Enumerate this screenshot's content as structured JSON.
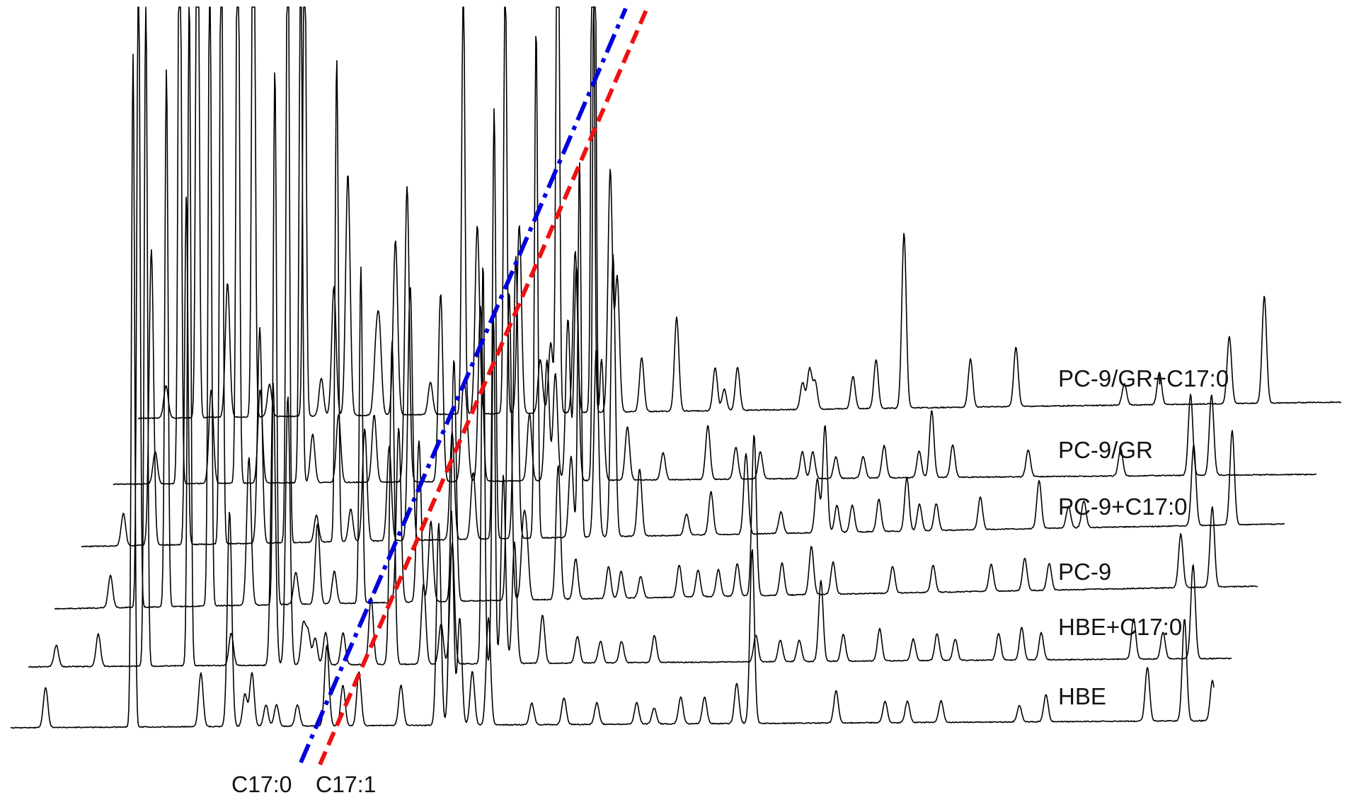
{
  "chart_data": {
    "type": "line",
    "title": "",
    "xlabel": "",
    "ylabel": "",
    "description_style": "stacked offset gas chromatograms",
    "series": [
      {
        "name": "PC-9/GR+C17:0",
        "peaks": [
          [
            0.04,
            0.12
          ],
          [
            0.085,
            2.5
          ],
          [
            0.128,
            0.5
          ],
          [
            0.165,
            2.5
          ],
          [
            0.188,
            0.12
          ],
          [
            0.238,
            2.0
          ],
          [
            0.262,
            0.14
          ],
          [
            0.28,
            0.48
          ],
          [
            0.3,
            0.9
          ],
          [
            0.34,
            0.22
          ],
          [
            0.345,
            0.3
          ],
          [
            0.368,
            0.65
          ],
          [
            0.418,
            0.12
          ],
          [
            0.465,
            1.65
          ],
          [
            0.485,
            0.7
          ],
          [
            0.525,
            1.65
          ],
          [
            0.545,
            0.7
          ],
          [
            0.575,
            0.2
          ],
          [
            0.59,
            0.26
          ],
          [
            0.6,
            2.5
          ],
          [
            0.625,
            0.6
          ],
          [
            0.65,
            2.5
          ],
          [
            0.675,
            0.9
          ],
          [
            0.685,
            0.5
          ],
          [
            0.72,
            0.2
          ],
          [
            0.77,
            0.35
          ],
          [
            0.825,
            0.16
          ],
          [
            0.838,
            0.08
          ],
          [
            0.857,
            0.16
          ],
          [
            0.95,
            0.1
          ],
          [
            0.96,
            0.15
          ],
          [
            0.968,
            0.1
          ],
          [
            1.022,
            0.12
          ],
          [
            1.055,
            0.18
          ],
          [
            1.095,
            0.65
          ],
          [
            1.19,
            0.18
          ],
          [
            1.255,
            0.22
          ],
          [
            1.41,
            0.08
          ],
          [
            1.46,
            0.12
          ],
          [
            1.56,
            0.25
          ],
          [
            1.61,
            0.4
          ]
        ]
      },
      {
        "name": "PC-9/GR",
        "peaks": [
          [
            0.06,
            0.12
          ],
          [
            0.095,
            2.5
          ],
          [
            0.14,
            0.35
          ],
          [
            0.178,
            2.5
          ],
          [
            0.21,
            0.35
          ],
          [
            0.268,
            2.0
          ],
          [
            0.285,
            0.18
          ],
          [
            0.322,
            0.25
          ],
          [
            0.373,
            0.25
          ],
          [
            0.42,
            1.1
          ],
          [
            0.468,
            0.7
          ],
          [
            0.5,
            0.3
          ],
          [
            0.505,
            0.2
          ],
          [
            0.525,
            0.65
          ],
          [
            0.595,
            0.25
          ],
          [
            0.62,
            0.45
          ],
          [
            0.632,
            0.4
          ],
          [
            0.65,
            0.6
          ],
          [
            0.662,
            0.8
          ],
          [
            0.688,
            2.5
          ],
          [
            0.698,
            0.45
          ],
          [
            0.735,
            0.2
          ],
          [
            0.786,
            0.1
          ],
          [
            0.85,
            0.2
          ],
          [
            0.89,
            0.12
          ],
          [
            0.925,
            0.1
          ],
          [
            0.985,
            0.1
          ],
          [
            1.0,
            0.1
          ],
          [
            1.033,
            0.08
          ],
          [
            1.072,
            0.08
          ],
          [
            1.102,
            0.12
          ],
          [
            1.152,
            0.1
          ],
          [
            1.17,
            0.25
          ],
          [
            1.2,
            0.12
          ],
          [
            1.308,
            0.1
          ],
          [
            1.44,
            0.1
          ],
          [
            1.54,
            0.3
          ],
          [
            1.57,
            0.3
          ]
        ]
      },
      {
        "name": "PC-9+C17:0",
        "peaks": [
          [
            0.06,
            0.12
          ],
          [
            0.1,
            1.1
          ],
          [
            0.15,
            1.3
          ],
          [
            0.2,
            2.5
          ],
          [
            0.255,
            0.8
          ],
          [
            0.295,
            2.5
          ],
          [
            0.336,
            0.1
          ],
          [
            0.365,
            1.8
          ],
          [
            0.385,
            0.12
          ],
          [
            0.405,
            0.42
          ],
          [
            0.44,
            0.35
          ],
          [
            0.47,
            0.95
          ],
          [
            0.53,
            0.4
          ],
          [
            0.56,
            0.25
          ],
          [
            0.59,
            1.6
          ],
          [
            0.621,
            1.05
          ],
          [
            0.65,
            1.9
          ],
          [
            0.7,
            0.3
          ],
          [
            0.712,
            1.4
          ],
          [
            0.736,
            0.7
          ],
          [
            0.76,
            1.05
          ],
          [
            0.798,
            0.25
          ],
          [
            0.865,
            0.08
          ],
          [
            0.9,
            0.16
          ],
          [
            0.95,
            0.3
          ],
          [
            1.0,
            0.08
          ],
          [
            1.052,
            0.2
          ],
          [
            1.063,
            0.4
          ],
          [
            1.08,
            0.1
          ],
          [
            1.102,
            0.1
          ],
          [
            1.14,
            0.12
          ],
          [
            1.18,
            0.2
          ],
          [
            1.198,
            0.1
          ],
          [
            1.222,
            0.1
          ],
          [
            1.285,
            0.12
          ],
          [
            1.369,
            0.18
          ],
          [
            1.411,
            0.08
          ],
          [
            1.433,
            0.1
          ],
          [
            1.59,
            0.3
          ],
          [
            1.645,
            0.35
          ]
        ]
      },
      {
        "name": "PC-9",
        "peaks": [
          [
            0.08,
            0.12
          ],
          [
            0.12,
            2.5
          ],
          [
            0.16,
            2.0
          ],
          [
            0.222,
            2.5
          ],
          [
            0.278,
            0.55
          ],
          [
            0.315,
            2.0
          ],
          [
            0.345,
            0.12
          ],
          [
            0.376,
            0.3
          ],
          [
            0.4,
            0.12
          ],
          [
            0.438,
            1.25
          ],
          [
            0.492,
            0.65
          ],
          [
            0.521,
            0.6
          ],
          [
            0.538,
            0.3
          ],
          [
            0.571,
            0.9
          ],
          [
            0.65,
            1.15
          ],
          [
            0.67,
            0.25
          ],
          [
            0.675,
            0.2
          ],
          [
            0.72,
            0.5
          ],
          [
            0.745,
            0.15
          ],
          [
            0.792,
            0.12
          ],
          [
            0.81,
            0.1
          ],
          [
            0.838,
            0.08
          ],
          [
            0.893,
            0.12
          ],
          [
            0.92,
            0.1
          ],
          [
            0.949,
            0.1
          ],
          [
            0.976,
            0.12
          ],
          [
            1.0,
            0.6
          ],
          [
            1.04,
            0.12
          ],
          [
            1.082,
            0.18
          ],
          [
            1.113,
            0.12
          ],
          [
            1.198,
            0.1
          ],
          [
            1.256,
            0.1
          ],
          [
            1.339,
            0.1
          ],
          [
            1.387,
            0.12
          ],
          [
            1.422,
            0.1
          ],
          [
            1.61,
            0.2
          ],
          [
            1.655,
            0.3
          ]
        ]
      },
      {
        "name": "HBE+C17:0",
        "peaks": [
          [
            0.04,
            0.08
          ],
          [
            0.1,
            0.12
          ],
          [
            0.168,
            2.5
          ],
          [
            0.23,
            2.5
          ],
          [
            0.29,
            0.12
          ],
          [
            0.35,
            1.05
          ],
          [
            0.371,
            1.0
          ],
          [
            0.393,
            0.15
          ],
          [
            0.4,
            0.12
          ],
          [
            0.41,
            0.1
          ],
          [
            0.425,
            0.12
          ],
          [
            0.45,
            0.12
          ],
          [
            0.49,
            0.25
          ],
          [
            0.52,
            1.2
          ],
          [
            0.565,
            0.3
          ],
          [
            0.59,
            0.15
          ],
          [
            0.606,
            0.45
          ],
          [
            0.65,
            1.5
          ],
          [
            0.665,
            1.3
          ],
          [
            0.679,
            0.7
          ],
          [
            0.695,
            0.45
          ],
          [
            0.735,
            0.18
          ],
          [
            0.785,
            0.1
          ],
          [
            0.818,
            0.08
          ],
          [
            0.848,
            0.08
          ],
          [
            0.895,
            0.1
          ],
          [
            1.04,
            0.1
          ],
          [
            1.075,
            0.08
          ],
          [
            1.102,
            0.08
          ],
          [
            1.133,
            0.3
          ],
          [
            1.165,
            0.1
          ],
          [
            1.217,
            0.12
          ],
          [
            1.265,
            0.08
          ],
          [
            1.299,
            0.1
          ],
          [
            1.325,
            0.08
          ],
          [
            1.387,
            0.1
          ],
          [
            1.42,
            0.12
          ],
          [
            1.448,
            0.1
          ],
          [
            1.58,
            0.15
          ],
          [
            1.622,
            0.1
          ],
          [
            1.665,
            0.35
          ]
        ]
      },
      {
        "name": "HBE",
        "peaks": [
          [
            0.05,
            0.15
          ],
          [
            0.175,
            2.5
          ],
          [
            0.272,
            0.2
          ],
          [
            0.313,
            0.8
          ],
          [
            0.335,
            0.12
          ],
          [
            0.345,
            0.2
          ],
          [
            0.365,
            0.08
          ],
          [
            0.38,
            0.08
          ],
          [
            0.41,
            0.08
          ],
          [
            0.452,
            0.3
          ],
          [
            0.475,
            0.15
          ],
          [
            0.498,
            0.2
          ],
          [
            0.558,
            0.15
          ],
          [
            0.612,
            0.75
          ],
          [
            0.63,
            0.8
          ],
          [
            0.642,
            0.4
          ],
          [
            0.66,
            0.2
          ],
          [
            0.683,
            0.4
          ],
          [
            0.745,
            0.08
          ],
          [
            0.791,
            0.1
          ],
          [
            0.838,
            0.08
          ],
          [
            0.895,
            0.08
          ],
          [
            0.92,
            0.06
          ],
          [
            0.958,
            0.1
          ],
          [
            0.992,
            0.1
          ],
          [
            1.038,
            0.15
          ],
          [
            1.06,
            0.65
          ],
          [
            1.18,
            0.12
          ],
          [
            1.25,
            0.08
          ],
          [
            1.282,
            0.08
          ],
          [
            1.33,
            0.08
          ],
          [
            1.442,
            0.06
          ],
          [
            1.48,
            0.1
          ],
          [
            1.625,
            0.2
          ],
          [
            1.678,
            0.38
          ],
          [
            1.718,
            0.15
          ]
        ]
      }
    ],
    "markers": [
      {
        "label": "C17:0",
        "color": "#0000dd",
        "style": "dash-dot"
      },
      {
        "label": "C17:1",
        "color": "#ee1111",
        "style": "dashed"
      }
    ]
  }
}
